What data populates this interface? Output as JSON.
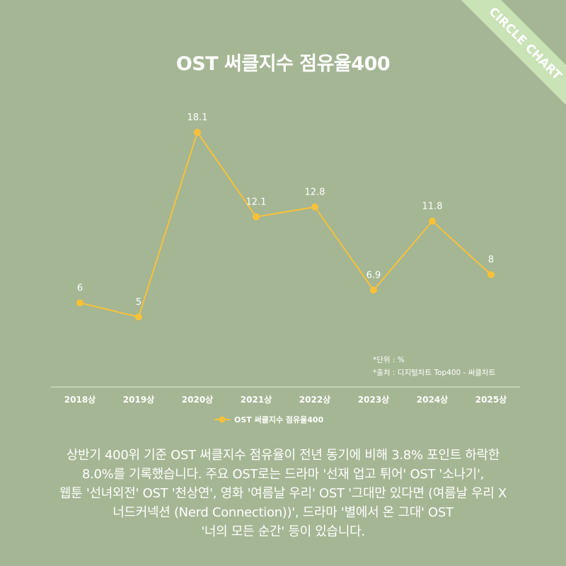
{
  "badge": "CIRCLE CHART",
  "chart_data": {
    "type": "line",
    "title": "OST 써클지수 점유율400",
    "categories": [
      "2018상",
      "2019상",
      "2020상",
      "2021상",
      "2022상",
      "2023상",
      "2024상",
      "2025상"
    ],
    "series": [
      {
        "name": "OST 써클지수 점유율400",
        "values": [
          6,
          5,
          18.1,
          12.1,
          12.8,
          6.9,
          11.8,
          8
        ]
      }
    ],
    "value_labels": [
      "6",
      "5",
      "18.1",
      "12.1",
      "12.8",
      "6.9",
      "11.8",
      "8"
    ],
    "ylim": [
      0,
      20
    ],
    "grid": false,
    "legend": "bottom-center",
    "colors": {
      "line": "#f8c13a",
      "background": "#a4b693"
    }
  },
  "notes": {
    "unit": "*단위 : %",
    "source": "*출처 : 디지털차트 Top400 - 써클차트"
  },
  "caption_lines": [
    "상반기 400위 기준 OST 써클지수 점유율이 전년 동기에 비해 3.8% 포인트 하락한",
    "8.0%를 기록했습니다. 주요 OST로는 드라마 '선재 업고 튀어' OST '소나기',",
    "웹툰 '선녀외전' OST '천상연', 영화 '여름날 우리' OST '그대만 있다면 (여름날 우리 X",
    "너드커넥션 (Nerd Connection))', 드라마 '별에서 온 그대' OST",
    "'너의 모든 순간' 등이 있습니다."
  ]
}
